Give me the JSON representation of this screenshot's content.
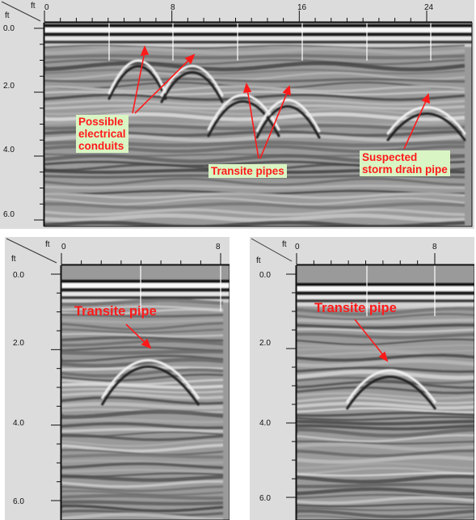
{
  "panels": [
    {
      "id": "top",
      "x_unit": "ft",
      "y_unit": "ft",
      "x_ticks": [
        "0",
        "8",
        "16",
        "24"
      ],
      "y_ticks": [
        "0.0",
        "2.0",
        "4.0",
        "6.0"
      ],
      "annotations": [
        {
          "text": "Possible\nelectrical\nconduits",
          "style": "green"
        },
        {
          "text": "Transite pipes",
          "style": "green"
        },
        {
          "text": "Suspected\nstorm drain pipe",
          "style": "green"
        }
      ]
    },
    {
      "id": "bottom-left",
      "x_unit": "ft",
      "y_unit": "ft",
      "x_ticks": [
        "0",
        "8"
      ],
      "y_ticks": [
        "0.0",
        "2.0",
        "4.0",
        "6.0"
      ],
      "annotations": [
        {
          "text": "Transite pipe",
          "style": "plain"
        }
      ]
    },
    {
      "id": "bottom-right",
      "x_unit": "ft",
      "y_unit": "ft",
      "x_ticks": [
        "0",
        "8"
      ],
      "y_ticks": [
        "0.0",
        "2.0",
        "4.0",
        "6.0"
      ],
      "annotations": [
        {
          "text": "Transite pipe",
          "style": "plain"
        }
      ]
    }
  ],
  "colors": {
    "annotation_text": "#ff1a1a",
    "annotation_bg": "#d9f5c3",
    "arrow": "#ff1a1a",
    "frame": "#dcdcdc"
  }
}
